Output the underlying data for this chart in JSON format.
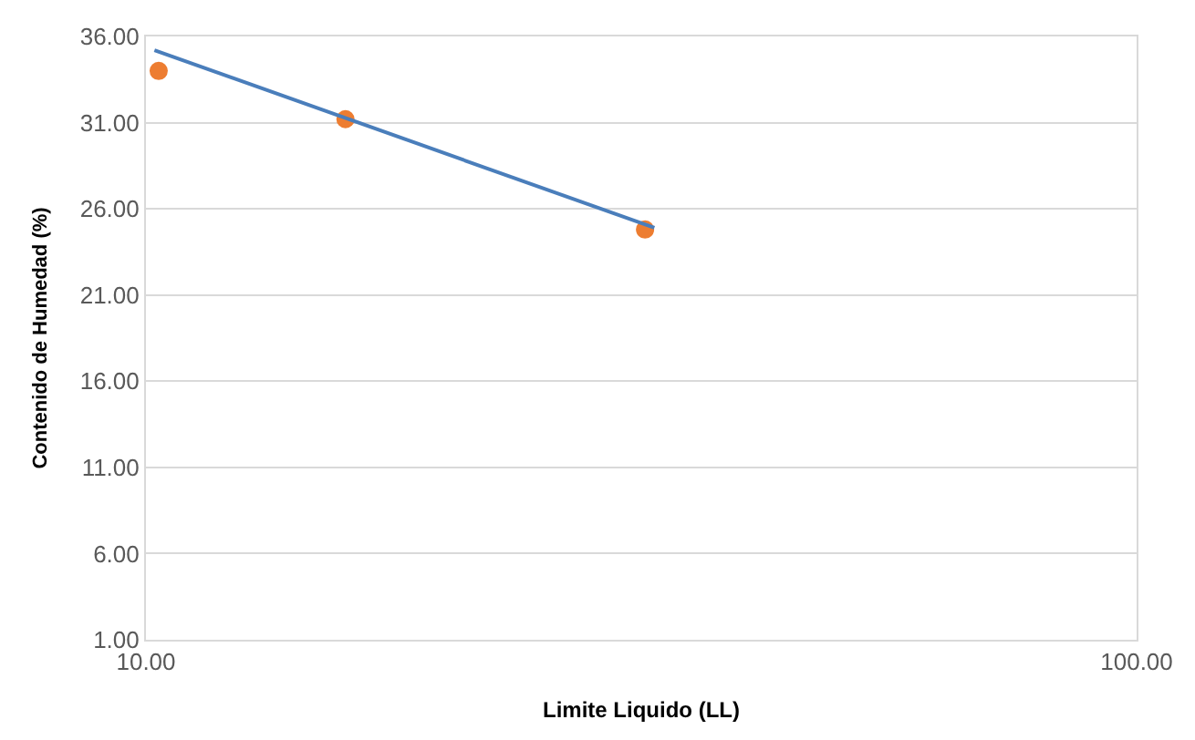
{
  "chart_data": {
    "type": "scatter",
    "xlabel": "Limite Liquido (LL)",
    "ylabel": "Contenido de Humedad (%)",
    "log": "x",
    "xlim": [
      10,
      100
    ],
    "xticks": [
      {
        "value": 10,
        "label": "10.00"
      },
      {
        "value": 100,
        "label": "100.00"
      }
    ],
    "ylim": [
      1,
      36
    ],
    "yticks": [
      {
        "value": 1,
        "label": "1.00"
      },
      {
        "value": 6,
        "label": "6.00"
      },
      {
        "value": 11,
        "label": "11.00"
      },
      {
        "value": 16,
        "label": "16.00"
      },
      {
        "value": 21,
        "label": "21.00"
      },
      {
        "value": 26,
        "label": "26.00"
      },
      {
        "value": 31,
        "label": "31.00"
      },
      {
        "value": 36,
        "label": "36.00"
      }
    ],
    "grid": "y",
    "legend": false,
    "marker": "circle",
    "series": [
      {
        "color": "#ed7d31",
        "x": [
          10.3,
          15.9,
          31.9
        ],
        "values": [
          34.0,
          31.2,
          24.8
        ]
      },
      {
        "type": "line",
        "color": "#4a7ebb",
        "x": [
          10.2,
          32.6
        ],
        "values": [
          35.2,
          24.9
        ],
        "marker": "none"
      }
    ]
  }
}
